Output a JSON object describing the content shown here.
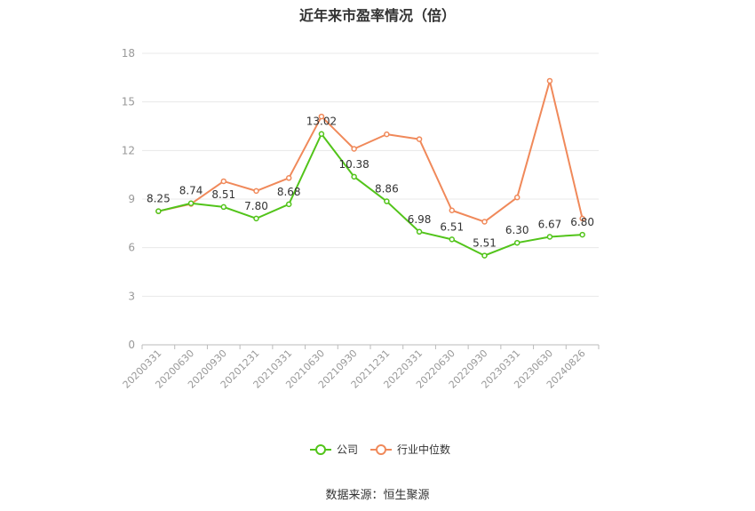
{
  "chart_data": {
    "type": "line",
    "title": "近年来市盈率情况（倍）",
    "source": "数据来源：恒生聚源",
    "categories": [
      "20200331",
      "20200630",
      "20200930",
      "20201231",
      "20210331",
      "20210630",
      "20210930",
      "20211231",
      "20220331",
      "20220630",
      "20220930",
      "20230331",
      "20230630",
      "20240826"
    ],
    "ylim": [
      0,
      18
    ],
    "yticks": [
      0,
      3,
      6,
      9,
      12,
      15,
      18
    ],
    "grid": true,
    "legend_position": "bottom",
    "series": [
      {
        "name": "公司",
        "color": "#52c41a",
        "values": [
          8.25,
          8.74,
          8.51,
          7.8,
          8.68,
          13.02,
          10.38,
          8.86,
          6.98,
          6.51,
          5.51,
          6.3,
          6.67,
          6.8
        ],
        "labels": [
          "8.25",
          "8.74",
          "8.51",
          "7.80",
          "8.68",
          "13.02",
          "10.38",
          "8.86",
          "6.98",
          "6.51",
          "5.51",
          "6.30",
          "6.67",
          "6.80"
        ]
      },
      {
        "name": "行业中位数",
        "color": "#f0895a",
        "values": [
          8.25,
          8.7,
          10.1,
          9.5,
          10.3,
          14.1,
          12.1,
          13.0,
          12.7,
          8.3,
          7.6,
          9.1,
          16.3,
          7.8
        ]
      }
    ]
  }
}
